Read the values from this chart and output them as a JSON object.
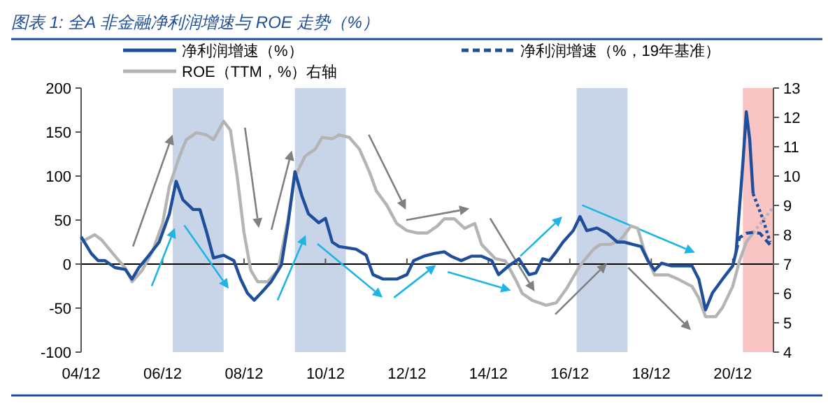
{
  "chart_data": {
    "type": "line",
    "title": "图表 1:  全A 非金融净利润增速与 ROE 走势（%）",
    "xlim": [
      "2004-12",
      "2021-12"
    ],
    "xticks": [
      {
        "value": "2004-12",
        "label": "04/12"
      },
      {
        "value": "2006-12",
        "label": "06/12"
      },
      {
        "value": "2008-12",
        "label": "08/12"
      },
      {
        "value": "2010-12",
        "label": "10/12"
      },
      {
        "value": "2012-12",
        "label": "12/12"
      },
      {
        "value": "2014-12",
        "label": "14/12"
      },
      {
        "value": "2016-12",
        "label": "16/12"
      },
      {
        "value": "2018-12",
        "label": "18/12"
      },
      {
        "value": "2020-12",
        "label": "20/12"
      }
    ],
    "ylim": [
      -100,
      200
    ],
    "yticks": [
      -100,
      -50,
      0,
      50,
      100,
      150,
      200
    ],
    "y2lim": [
      4,
      13
    ],
    "y2ticks": [
      4,
      5,
      6,
      7,
      8,
      9,
      10,
      11,
      12,
      13
    ],
    "legend": "top",
    "ref_lines": [
      {
        "axis": "y",
        "value": 0,
        "color": "#000000"
      }
    ],
    "bands": [
      {
        "axis": "x",
        "from": "2007-03",
        "to": "2008-06",
        "color": "#c8d4e8"
      },
      {
        "axis": "x",
        "from": "2010-03",
        "to": "2011-06",
        "color": "#c8d4e8"
      },
      {
        "axis": "x",
        "from": "2017-02",
        "to": "2018-05",
        "color": "#c8d4e8"
      },
      {
        "axis": "x",
        "from": "2021-03",
        "to": "2021-12",
        "color": "#f9c4c4"
      }
    ],
    "series": [
      {
        "name": "净利润增速（%）",
        "color": "#1f4e9a",
        "line_style": "solid",
        "x": [
          "2004-12",
          "2005-03",
          "2005-05",
          "2005-07",
          "2005-10",
          "2006-01",
          "2006-03",
          "2006-05",
          "2006-08",
          "2006-11",
          "2007-02",
          "2007-04",
          "2007-06",
          "2007-09",
          "2007-11",
          "2008-01",
          "2008-03",
          "2008-06",
          "2008-09",
          "2008-11",
          "2009-01",
          "2009-03",
          "2009-05",
          "2009-08",
          "2009-11",
          "2010-01",
          "2010-03",
          "2010-05",
          "2010-07",
          "2010-10",
          "2010-12",
          "2011-02",
          "2011-04",
          "2011-09",
          "2011-12",
          "2012-02",
          "2012-05",
          "2012-09",
          "2012-12",
          "2013-02",
          "2013-05",
          "2013-08",
          "2013-11",
          "2014-01",
          "2014-04",
          "2014-07",
          "2014-10",
          "2015-01",
          "2015-03",
          "2015-06",
          "2015-09",
          "2015-12",
          "2016-02",
          "2016-04",
          "2016-06",
          "2016-08",
          "2016-10",
          "2017-01",
          "2017-03",
          "2017-05",
          "2017-08",
          "2017-11",
          "2018-02",
          "2018-04",
          "2018-07",
          "2018-09",
          "2018-11",
          "2019-01",
          "2019-03",
          "2019-06",
          "2019-10",
          "2019-12",
          "2020-02",
          "2020-04",
          "2020-06",
          "2020-09",
          "2020-11",
          "2020-12",
          "2021-01",
          "2021-03",
          "2021-04",
          "2021-05",
          "2021-06"
        ],
        "values": [
          31,
          12,
          4,
          4,
          -4,
          -6,
          -17,
          -4,
          10,
          25,
          57,
          94,
          73,
          62,
          62,
          36,
          7,
          10,
          4,
          -17,
          -33,
          -41,
          -33,
          -20,
          -1,
          47,
          105,
          78,
          57,
          47,
          52,
          25,
          20,
          17,
          10,
          -12,
          -17,
          -17,
          -12,
          4,
          9,
          12,
          14,
          9,
          4,
          9,
          9,
          4,
          -12,
          -2,
          6,
          -12,
          -10,
          6,
          4,
          14,
          25,
          38,
          54,
          38,
          41,
          35,
          25,
          25,
          22,
          20,
          4,
          -7,
          1,
          -2,
          -2,
          -2,
          -17,
          -52,
          -33,
          -17,
          -7,
          -2,
          14,
          115,
          173,
          142,
          80
        ]
      },
      {
        "name": "净利润增速（%，19年基准）",
        "color": "#1f4e9a",
        "line_style": "dashed",
        "x": [
          "2021-01",
          "2021-02",
          "2021-04",
          "2021-06",
          "2021-08",
          "2021-11"
        ],
        "values": [
          14,
          30,
          35,
          36,
          35,
          22
        ]
      },
      {
        "name": "ROE（TTM，%）右轴",
        "color": "#b4b4b4",
        "axis": "y2",
        "line_style": "solid",
        "x": [
          "2004-12",
          "2005-04",
          "2005-06",
          "2005-10",
          "2006-01",
          "2006-03",
          "2006-06",
          "2006-09",
          "2006-12",
          "2007-02",
          "2007-05",
          "2007-07",
          "2007-10",
          "2008-01",
          "2008-03",
          "2008-06",
          "2008-08",
          "2008-10",
          "2008-12",
          "2009-02",
          "2009-04",
          "2009-07",
          "2009-10",
          "2010-01",
          "2010-03",
          "2010-06",
          "2010-09",
          "2010-11",
          "2011-02",
          "2011-04",
          "2011-07",
          "2011-10",
          "2012-01",
          "2012-03",
          "2012-06",
          "2012-09",
          "2012-12",
          "2013-03",
          "2013-06",
          "2013-09",
          "2013-11",
          "2014-02",
          "2014-05",
          "2014-08",
          "2014-10",
          "2015-02",
          "2015-05",
          "2015-08",
          "2015-10",
          "2016-01",
          "2016-05",
          "2016-08",
          "2016-11",
          "2017-03",
          "2017-07",
          "2017-09",
          "2017-12",
          "2018-03",
          "2018-06",
          "2018-08",
          "2018-10",
          "2019-01",
          "2019-05",
          "2019-08",
          "2019-12",
          "2020-02",
          "2020-04",
          "2020-07",
          "2020-09",
          "2020-12",
          "2021-02",
          "2021-04",
          "2021-06"
        ],
        "values": [
          7.75,
          8.0,
          7.83,
          7.27,
          6.87,
          6.4,
          6.79,
          7.43,
          8.38,
          9.65,
          10.68,
          11.24,
          11.48,
          11.4,
          11.24,
          11.87,
          11.56,
          9.97,
          8.07,
          6.79,
          6.4,
          6.4,
          6.79,
          8.54,
          9.97,
          10.68,
          10.92,
          11.32,
          11.27,
          11.4,
          11.32,
          10.92,
          10.13,
          9.49,
          9.02,
          8.38,
          8.14,
          8.06,
          8.06,
          8.3,
          8.54,
          8.54,
          8.22,
          8.38,
          7.67,
          7.19,
          7.11,
          6.48,
          6.0,
          5.76,
          5.6,
          5.68,
          6.16,
          6.95,
          7.51,
          7.67,
          7.67,
          7.83,
          8.3,
          8.22,
          7.43,
          6.63,
          6.63,
          6.48,
          6.24,
          5.84,
          5.21,
          5.21,
          5.52,
          6.24,
          7.11,
          7.75,
          8.06
        ]
      },
      {
        "color": "#b4b4b4",
        "axis": "y2",
        "line_style": "dotted",
        "x": [
          "2021-06",
          "2021-12"
        ],
        "values": [
          8.06,
          8.95
        ]
      },
      {
        "color": "#1f4e9a",
        "line_style": "dotted",
        "x": [
          "2021-06",
          "2021-09",
          "2021-11"
        ],
        "values": [
          80,
          50,
          25
        ]
      }
    ]
  }
}
